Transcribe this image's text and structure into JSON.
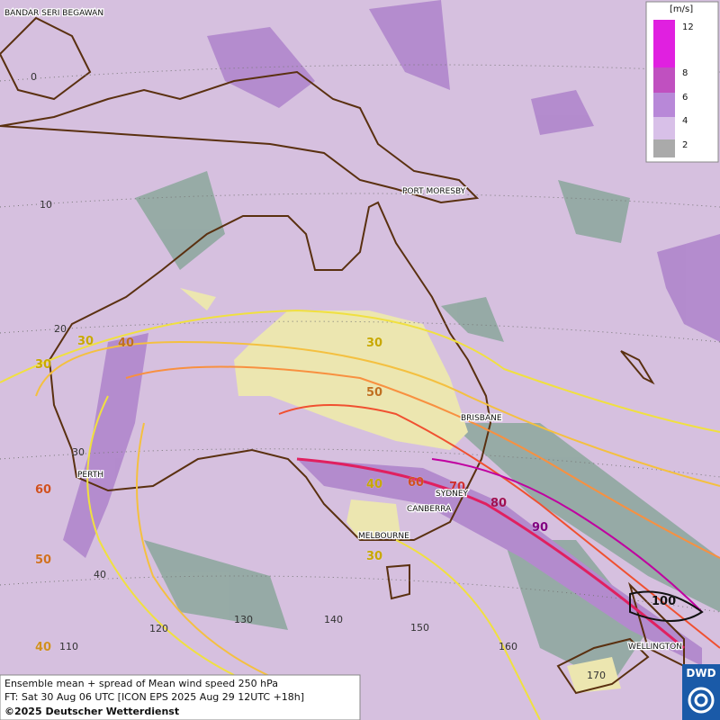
{
  "map": {
    "cities": [
      "BANDAR SERI BEGAWAN",
      "PORT MORESBY",
      "BRISBANE",
      "PERTH",
      "SYDNEY",
      "CANBERRA",
      "MELBOURNE",
      "WELLINGTON"
    ],
    "lat_labels": [
      "0",
      "10",
      "20",
      "30",
      "40"
    ],
    "lon_labels": [
      "110",
      "120",
      "130",
      "140",
      "150",
      "160",
      "170"
    ],
    "contour_labels": [
      "30",
      "40",
      "30",
      "30",
      "50",
      "60",
      "40",
      "60",
      "70",
      "80",
      "90",
      "50",
      "30",
      "40",
      "100"
    ]
  },
  "legend": {
    "unit": "[m/s]",
    "ticks": [
      "12",
      "8",
      "6",
      "4",
      "2"
    ]
  },
  "footer": {
    "line1": "Ensemble mean + spread of Mean wind speed 250 hPa",
    "line2": "FT: Sat 30 Aug 06 UTC [ICON EPS 2025 Aug 29 12UTC +18h]",
    "line3": "©2025 Deutscher Wetterdienst"
  },
  "logo": "DWD"
}
